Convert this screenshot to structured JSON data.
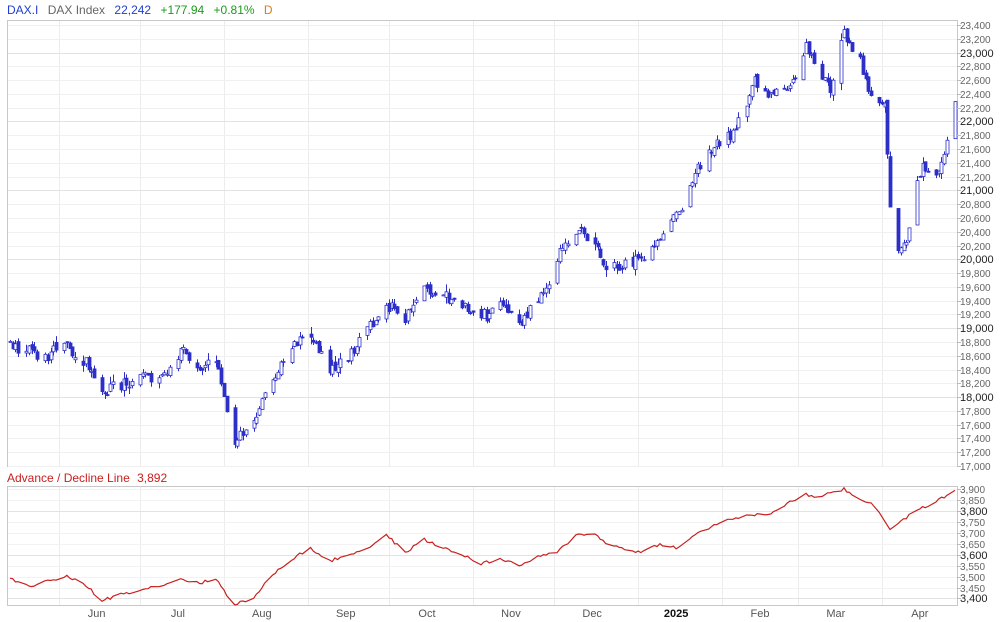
{
  "header": {
    "symbol": "DAX.I",
    "name": "DAX Index",
    "last": "22,242",
    "change": "+177.94",
    "change_pct": "+0.81%",
    "period": "D"
  },
  "lower": {
    "label": "Advance / Decline Line",
    "value": "3,892"
  },
  "colors": {
    "candle": "#2c2fc8",
    "ad_line": "#c8201e",
    "symbol": "#1f3fd0",
    "name": "#666666",
    "last": "#1f3fd0",
    "up": "#1c9b1c",
    "period": "#e07a12"
  },
  "chart_data": [
    {
      "type": "candlestick",
      "series": "DAX Index daily OHLC",
      "y_ticks": [
        17000,
        17200,
        17400,
        17600,
        17800,
        18000,
        18200,
        18400,
        18600,
        18800,
        19000,
        19200,
        19400,
        19600,
        19800,
        20000,
        20200,
        20400,
        20600,
        20800,
        21000,
        21200,
        21400,
        21600,
        21800,
        22000,
        22200,
        22400,
        22600,
        22800,
        23000,
        23200,
        23400
      ],
      "y_major": [
        18000,
        19000,
        20000,
        21000,
        22000,
        23000
      ],
      "ylim": [
        17000,
        23400
      ],
      "x_labels": [
        "Jun",
        "Jul",
        "Aug",
        "Sep",
        "Oct",
        "Nov",
        "Dec",
        "2025",
        "Feb",
        "Mar",
        "Apr"
      ],
      "path": [
        [
          "2024-05-14",
          18780
        ],
        [
          "2024-05-21",
          18700
        ],
        [
          "2024-05-28",
          18600
        ],
        [
          "2024-06-04",
          18750
        ],
        [
          "2024-06-11",
          18500
        ],
        [
          "2024-06-17",
          18050
        ],
        [
          "2024-06-24",
          18150
        ],
        [
          "2024-07-01",
          18300
        ],
        [
          "2024-07-09",
          18300
        ],
        [
          "2024-07-16",
          18650
        ],
        [
          "2024-07-23",
          18400
        ],
        [
          "2024-07-29",
          18600
        ],
        [
          "2024-08-02",
          17750
        ],
        [
          "2024-08-05",
          17300
        ],
        [
          "2024-08-12",
          17700
        ],
        [
          "2024-08-19",
          18300
        ],
        [
          "2024-08-26",
          18700
        ],
        [
          "2024-09-02",
          18950
        ],
        [
          "2024-09-09",
          18350
        ],
        [
          "2024-09-16",
          18600
        ],
        [
          "2024-09-23",
          19000
        ],
        [
          "2024-09-30",
          19300
        ],
        [
          "2024-10-07",
          19150
        ],
        [
          "2024-10-14",
          19600
        ],
        [
          "2024-10-21",
          19500
        ],
        [
          "2024-10-28",
          19350
        ],
        [
          "2024-11-04",
          19150
        ],
        [
          "2024-11-11",
          19300
        ],
        [
          "2024-11-18",
          19100
        ],
        [
          "2024-11-25",
          19300
        ],
        [
          "2024-12-02",
          20000
        ],
        [
          "2024-12-09",
          20400
        ],
        [
          "2024-12-16",
          20250
        ],
        [
          "2024-12-20",
          19900
        ],
        [
          "2025-01-02",
          19950
        ],
        [
          "2025-01-09",
          20350
        ],
        [
          "2025-01-16",
          20700
        ],
        [
          "2025-01-23",
          21300
        ],
        [
          "2025-01-30",
          21650
        ],
        [
          "2025-02-06",
          21900
        ],
        [
          "2025-02-13",
          22600
        ],
        [
          "2025-02-19",
          22350
        ],
        [
          "2025-02-26",
          22500
        ],
        [
          "2025-03-04",
          23100
        ],
        [
          "2025-03-07",
          22900
        ],
        [
          "2025-03-13",
          22500
        ],
        [
          "2025-03-18",
          23300
        ],
        [
          "2025-03-24",
          22850
        ],
        [
          "2025-03-28",
          22300
        ],
        [
          "2025-04-02",
          22200
        ],
        [
          "2025-04-04",
          20800
        ],
        [
          "2025-04-07",
          20100
        ],
        [
          "2025-04-10",
          20200
        ],
        [
          "2025-04-15",
          21300
        ],
        [
          "2025-04-22",
          21250
        ],
        [
          "2025-04-28",
          22250
        ]
      ]
    },
    {
      "type": "line",
      "series": "Advance / Decline Line",
      "y_ticks": [
        3400,
        3450,
        3500,
        3550,
        3600,
        3650,
        3700,
        3750,
        3800,
        3850,
        3900
      ],
      "y_major": [
        3400,
        3600,
        3800
      ],
      "ylim": [
        3370,
        3910
      ],
      "x_labels": [
        "Jun",
        "Jul",
        "Aug",
        "Sep",
        "Oct",
        "Nov",
        "Dec",
        "2025",
        "Feb",
        "Mar",
        "Apr"
      ],
      "path": [
        [
          "2024-05-14",
          3490
        ],
        [
          "2024-05-21",
          3455
        ],
        [
          "2024-05-28",
          3480
        ],
        [
          "2024-06-04",
          3500
        ],
        [
          "2024-06-11",
          3460
        ],
        [
          "2024-06-17",
          3390
        ],
        [
          "2024-06-24",
          3420
        ],
        [
          "2024-07-01",
          3440
        ],
        [
          "2024-07-09",
          3460
        ],
        [
          "2024-07-16",
          3490
        ],
        [
          "2024-07-23",
          3470
        ],
        [
          "2024-07-29",
          3490
        ],
        [
          "2024-08-02",
          3420
        ],
        [
          "2024-08-05",
          3375
        ],
        [
          "2024-08-12",
          3400
        ],
        [
          "2024-08-19",
          3510
        ],
        [
          "2024-08-26",
          3580
        ],
        [
          "2024-09-02",
          3630
        ],
        [
          "2024-09-09",
          3570
        ],
        [
          "2024-09-16",
          3600
        ],
        [
          "2024-09-23",
          3630
        ],
        [
          "2024-09-30",
          3690
        ],
        [
          "2024-10-07",
          3610
        ],
        [
          "2024-10-14",
          3670
        ],
        [
          "2024-10-21",
          3630
        ],
        [
          "2024-10-28",
          3600
        ],
        [
          "2024-11-04",
          3560
        ],
        [
          "2024-11-11",
          3580
        ],
        [
          "2024-11-18",
          3550
        ],
        [
          "2024-11-25",
          3590
        ],
        [
          "2024-12-02",
          3610
        ],
        [
          "2024-12-09",
          3690
        ],
        [
          "2024-12-16",
          3700
        ],
        [
          "2024-12-20",
          3650
        ],
        [
          "2025-01-02",
          3610
        ],
        [
          "2025-01-09",
          3650
        ],
        [
          "2025-01-16",
          3630
        ],
        [
          "2025-01-23",
          3700
        ],
        [
          "2025-01-30",
          3740
        ],
        [
          "2025-02-06",
          3770
        ],
        [
          "2025-02-13",
          3780
        ],
        [
          "2025-02-19",
          3790
        ],
        [
          "2025-02-26",
          3840
        ],
        [
          "2025-03-04",
          3880
        ],
        [
          "2025-03-07",
          3860
        ],
        [
          "2025-03-13",
          3880
        ],
        [
          "2025-03-18",
          3900
        ],
        [
          "2025-03-24",
          3850
        ],
        [
          "2025-03-28",
          3840
        ],
        [
          "2025-04-02",
          3760
        ],
        [
          "2025-04-04",
          3720
        ],
        [
          "2025-04-07",
          3740
        ],
        [
          "2025-04-10",
          3770
        ],
        [
          "2025-04-15",
          3810
        ],
        [
          "2025-04-22",
          3850
        ],
        [
          "2025-04-28",
          3892
        ]
      ]
    }
  ]
}
